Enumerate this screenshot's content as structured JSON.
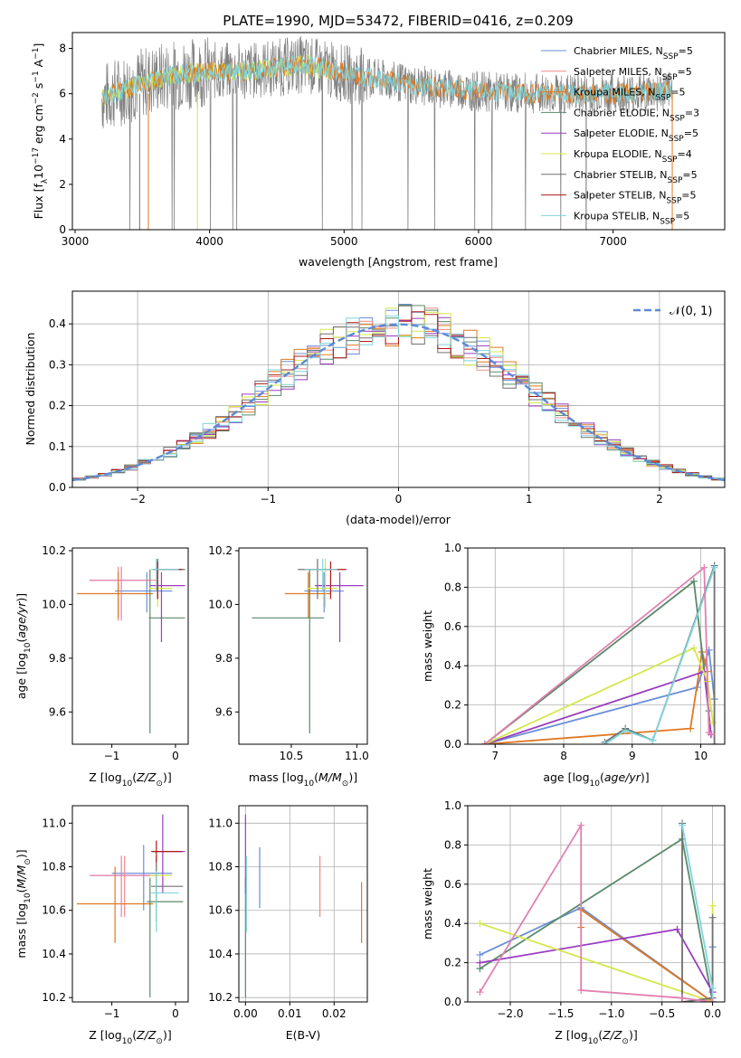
{
  "title": "PLATE=1990, MJD=53472, FIBERID=0416, z=0.209",
  "colors": {
    "Chabrier MILES": "#6a8fd8",
    "Salpeter MILES": "#f08a8a",
    "Kroupa MILES": "#e07820",
    "Chabrier ELODIE": "#5a8a6a",
    "Salpeter ELODIE": "#9a3cc0",
    "Kroupa ELODIE": "#d4e84a",
    "Chabrier STELIB": "#707070",
    "Salpeter STELIB": "#b01818",
    "Kroupa STELIB": "#7ed4dc",
    "pink": "#e080b0",
    "gauss": "#5b8ad6"
  },
  "chart_data": [
    {
      "id": "spectrum",
      "type": "line",
      "title": "PLATE=1990, MJD=53472, FIBERID=0416, z=0.209",
      "xlabel": "wavelength [Angstrom, rest frame]",
      "ylabel_main": "Flux [f",
      "ylabel_tail": "10",
      "ylabel_units": "erg cm",
      "xlim": [
        2980,
        7830
      ],
      "ylim": [
        0,
        8.7
      ],
      "xticks": [
        "3000",
        "4000",
        "5000",
        "6000",
        "7000"
      ],
      "yticks": [
        "0",
        "2",
        "4",
        "6",
        "8"
      ],
      "legend_loc": "upper right",
      "legend": [
        {
          "model": "Chabrier MILES, N",
          "n": "=5"
        },
        {
          "model": "Salpeter MILES, N",
          "n": "=5"
        },
        {
          "model": "Kroupa MILES, N",
          "n": "=5"
        },
        {
          "model": "Chabrier ELODIE, N",
          "n": "=3"
        },
        {
          "model": "Salpeter ELODIE, N",
          "n": "=5"
        },
        {
          "model": "Kroupa ELODIE, N",
          "n": "=4"
        },
        {
          "model": "Chabrier STELIB, N",
          "n": "=5"
        },
        {
          "model": "Salpeter STELIB, N",
          "n": "=5"
        },
        {
          "model": "Kroupa STELIB, N",
          "n": "=5"
        }
      ],
      "ssp_sub": "SSP",
      "wavelength_range": [
        3200,
        7440
      ],
      "continuum": [
        [
          3200,
          5.8
        ],
        [
          3500,
          6.5
        ],
        [
          3700,
          6.8
        ],
        [
          4000,
          7.0
        ],
        [
          4300,
          7.0
        ],
        [
          4700,
          7.3
        ],
        [
          5000,
          6.9
        ],
        [
          5500,
          6.4
        ],
        [
          6000,
          6.1
        ],
        [
          6500,
          6.0
        ],
        [
          7000,
          6.0
        ],
        [
          7440,
          6.1
        ]
      ]
    },
    {
      "id": "residuals",
      "type": "histogram",
      "xlabel": "(data-model)/error",
      "ylabel": "Normed distribution",
      "xlim": [
        -2.5,
        2.5
      ],
      "ylim": [
        0,
        0.48
      ],
      "xticks": [
        "−2",
        "−1",
        "0",
        "1",
        "2"
      ],
      "yticks": [
        "0.0",
        "0.1",
        "0.2",
        "0.3",
        "0.4"
      ],
      "grid": true,
      "legend_loc": "upper right",
      "gauss_label": "𝒩(0, 1)",
      "bin_width": 0.1
    },
    {
      "id": "age-vs-Z",
      "type": "scatter",
      "xlabel": "Z [log",
      "ylabel": "age  [log",
      "xlim": [
        -1.62,
        0.2
      ],
      "ylim": [
        9.48,
        10.21
      ],
      "xticks": [
        "−1",
        "0"
      ],
      "yticks": [
        "9.6",
        "9.8",
        "10.0",
        "10.2"
      ],
      "points": [
        {
          "c": "Chabrier MILES",
          "x": -0.45,
          "y": 10.05,
          "xe": [
            -0.95,
            -0.05
          ],
          "ye": [
            9.97,
            10.12
          ]
        },
        {
          "c": "Salpeter MILES",
          "x": -0.9,
          "y": 10.09,
          "xe": [
            -1.35,
            -0.3
          ],
          "ye": [
            9.94,
            10.14
          ]
        },
        {
          "c": "Kroupa MILES",
          "x": -0.9,
          "y": 10.04,
          "xe": [
            -1.55,
            -0.35
          ],
          "ye": [
            9.95,
            10.12
          ]
        },
        {
          "c": "Chabrier ELODIE",
          "x": -0.4,
          "y": 9.95,
          "xe": [
            -0.42,
            0.15
          ],
          "ye": [
            9.52,
            10.13
          ]
        },
        {
          "c": "Salpeter ELODIE",
          "x": -0.22,
          "y": 10.07,
          "xe": [
            -0.4,
            0.15
          ],
          "ye": [
            9.86,
            10.12
          ]
        },
        {
          "c": "Kroupa ELODIE",
          "x": -0.28,
          "y": 10.06,
          "xe": [
            -0.42,
            -0.05
          ],
          "ye": [
            9.99,
            10.17
          ]
        },
        {
          "c": "Chabrier STELIB",
          "x": -0.28,
          "y": 10.13,
          "xe": [
            -0.35,
            0.15
          ],
          "ye": [
            10.02,
            10.17
          ]
        },
        {
          "c": "Salpeter STELIB",
          "x": -0.28,
          "y": 10.13,
          "xe": [
            -0.35,
            0.1
          ],
          "ye": [
            10.02,
            10.16
          ]
        },
        {
          "c": "Kroupa STELIB",
          "x": -0.3,
          "y": 10.13,
          "xe": [
            -0.38,
            0.05
          ],
          "ye": [
            10.05,
            10.17
          ]
        },
        {
          "c": "pink",
          "x": -0.85,
          "y": 10.09,
          "xe": [
            -1.35,
            -0.4
          ],
          "ye": [
            9.94,
            10.14
          ]
        }
      ]
    },
    {
      "id": "age-vs-mass",
      "type": "scatter",
      "xlabel": "mass [log",
      "xlim": [
        10.1,
        11.08
      ],
      "ylim": [
        9.48,
        10.21
      ],
      "xticks": [
        "10.5",
        "11.0"
      ],
      "yticks": [
        "9.6",
        "9.8",
        "10.0",
        "10.2"
      ],
      "points": [
        {
          "c": "Chabrier MILES",
          "x": 10.75,
          "y": 10.05,
          "xe": [
            10.6,
            10.9
          ],
          "ye": [
            9.97,
            10.12
          ]
        },
        {
          "c": "Kroupa MILES",
          "x": 10.63,
          "y": 10.04,
          "xe": [
            10.45,
            10.8
          ],
          "ye": [
            9.95,
            10.12
          ]
        },
        {
          "c": "Chabrier ELODIE",
          "x": 10.64,
          "y": 9.95,
          "xe": [
            10.2,
            10.75
          ],
          "ye": [
            9.52,
            10.13
          ]
        },
        {
          "c": "Salpeter ELODIE",
          "x": 10.87,
          "y": 10.07,
          "xe": [
            10.68,
            11.05
          ],
          "ye": [
            9.86,
            10.12
          ]
        },
        {
          "c": "Kroupa ELODIE",
          "x": 10.76,
          "y": 10.06,
          "xe": [
            10.62,
            10.85
          ],
          "ye": [
            9.99,
            10.17
          ]
        },
        {
          "c": "Chabrier STELIB",
          "x": 10.7,
          "y": 10.13,
          "xe": [
            10.55,
            10.85
          ],
          "ye": [
            10.02,
            10.17
          ]
        },
        {
          "c": "Salpeter STELIB",
          "x": 10.8,
          "y": 10.13,
          "xe": [
            10.6,
            10.92
          ],
          "ye": [
            10.02,
            10.16
          ]
        },
        {
          "c": "Kroupa STELIB",
          "x": 10.74,
          "y": 10.13,
          "xe": [
            10.6,
            10.85
          ],
          "ye": [
            10.05,
            10.17
          ]
        }
      ]
    },
    {
      "id": "weight-vs-age",
      "type": "line",
      "xlabel": "age  [log",
      "ylabel": "mass weight",
      "xlim": [
        6.6,
        10.35
      ],
      "ylim": [
        0,
        1.0
      ],
      "xticks": [
        "7",
        "8",
        "9",
        "10"
      ],
      "yticks": [
        "0.0",
        "0.2",
        "0.4",
        "0.6",
        "0.8",
        "1.0"
      ],
      "grid": true,
      "series": [
        {
          "c": "Chabrier MILES",
          "x": [
            6.85,
            9.95,
            10.12,
            10.2
          ],
          "y": [
            0.0,
            0.29,
            0.48,
            0.23
          ]
        },
        {
          "c": "Kroupa MILES",
          "x": [
            6.85,
            9.85,
            10.02,
            10.1
          ],
          "y": [
            0.0,
            0.08,
            0.47,
            0.37
          ]
        },
        {
          "c": "Chabrier ELODIE",
          "x": [
            6.85,
            9.9,
            10.12
          ],
          "y": [
            0.0,
            0.83,
            0.17
          ]
        },
        {
          "c": "Salpeter ELODIE",
          "x": [
            6.85,
            10.05,
            10.15
          ],
          "y": [
            0.0,
            0.37,
            0.05
          ]
        },
        {
          "c": "Kroupa ELODIE",
          "x": [
            6.85,
            9.9,
            10.1,
            10.18
          ],
          "y": [
            0.0,
            0.49,
            0.32,
            0.11
          ]
        },
        {
          "c": "Chabrier STELIB",
          "x": [
            8.6,
            8.9,
            9.3,
            10.2,
            10.2
          ],
          "y": [
            0.01,
            0.08,
            0.02,
            0.91,
            0.0
          ]
        },
        {
          "c": "Kroupa STELIB",
          "x": [
            8.6,
            8.9,
            9.3,
            10.2
          ],
          "y": [
            0.0,
            0.07,
            0.02,
            0.9
          ]
        },
        {
          "c": "pink",
          "x": [
            6.85,
            10.05,
            10.12,
            10.16
          ],
          "y": [
            0.0,
            0.9,
            0.06,
            0.05
          ]
        }
      ]
    },
    {
      "id": "mass-vs-Z",
      "type": "scatter",
      "xlabel": "Z [log",
      "ylabel": "mass [log",
      "xlim": [
        -1.62,
        0.2
      ],
      "ylim": [
        10.18,
        11.08
      ],
      "xticks": [
        "−1",
        "0"
      ],
      "yticks": [
        "10.2",
        "10.4",
        "10.6",
        "10.8",
        "11.0"
      ],
      "points": [
        {
          "c": "Chabrier MILES",
          "x": -0.5,
          "y": 10.77,
          "xe": [
            -1.0,
            -0.05
          ],
          "ye": [
            10.6,
            10.9
          ]
        },
        {
          "c": "Salpeter MILES",
          "x": -0.8,
          "y": 10.76,
          "xe": [
            -1.3,
            -0.3
          ],
          "ye": [
            10.57,
            10.85
          ]
        },
        {
          "c": "Kroupa MILES",
          "x": -0.95,
          "y": 10.63,
          "xe": [
            -1.55,
            -0.35
          ],
          "ye": [
            10.45,
            10.8
          ]
        },
        {
          "c": "Chabrier ELODIE",
          "x": -0.4,
          "y": 10.64,
          "xe": [
            -0.45,
            0.12
          ],
          "ye": [
            10.2,
            10.75
          ]
        },
        {
          "c": "Salpeter ELODIE",
          "x": -0.2,
          "y": 10.87,
          "xe": [
            -0.35,
            0.15
          ],
          "ye": [
            10.68,
            11.04
          ]
        },
        {
          "c": "Kroupa ELODIE",
          "x": -0.3,
          "y": 10.76,
          "xe": [
            -0.45,
            -0.05
          ],
          "ye": [
            10.62,
            10.85
          ]
        },
        {
          "c": "Chabrier STELIB",
          "x": -0.3,
          "y": 10.71,
          "xe": [
            -0.38,
            0.12
          ],
          "ye": [
            10.55,
            10.85
          ]
        },
        {
          "c": "Salpeter STELIB",
          "x": -0.3,
          "y": 10.87,
          "xe": [
            -0.38,
            0.1
          ],
          "ye": [
            10.82,
            10.92
          ]
        },
        {
          "c": "Kroupa STELIB",
          "x": -0.3,
          "y": 10.68,
          "xe": [
            -0.38,
            0.05
          ],
          "ye": [
            10.5,
            10.78
          ]
        },
        {
          "c": "pink",
          "x": -0.85,
          "y": 10.76,
          "xe": [
            -1.35,
            -0.4
          ],
          "ye": [
            10.57,
            10.85
          ]
        }
      ]
    },
    {
      "id": "mass-vs-ebv",
      "type": "scatter",
      "xlabel": "E(B-V)",
      "xlim": [
        -0.0015,
        0.0275
      ],
      "ylim": [
        10.18,
        11.08
      ],
      "xticks": [
        "0.00",
        "0.01",
        "0.02"
      ],
      "yticks": [
        "10.2",
        "10.4",
        "10.6",
        "10.8",
        "11.0"
      ],
      "grid": true,
      "points": [
        {
          "c": "Chabrier MILES",
          "x": 0.0032,
          "ye": [
            10.61,
            10.89
          ]
        },
        {
          "c": "Salpeter MILES",
          "x": 0.0168,
          "ye": [
            10.57,
            10.85
          ]
        },
        {
          "c": "Kroupa MILES",
          "x": 0.0262,
          "ye": [
            10.45,
            10.73
          ]
        },
        {
          "c": "Chabrier ELODIE",
          "x": 0.0,
          "ye": [
            10.2,
            10.75
          ]
        },
        {
          "c": "Salpeter ELODIE",
          "x": 0.0,
          "ye": [
            10.68,
            11.04
          ]
        },
        {
          "c": "Kroupa STELIB",
          "x": 0.0002,
          "ye": [
            10.5,
            10.85
          ]
        }
      ]
    },
    {
      "id": "weight-vs-Z",
      "type": "line",
      "xlabel": "Z [log",
      "ylabel": "mass weight",
      "xlim": [
        -2.42,
        0.12
      ],
      "ylim": [
        0,
        1.0
      ],
      "xticks": [
        "−2.0",
        "−1.5",
        "−1.0",
        "−0.5",
        "0.0"
      ],
      "yticks": [
        "0.0",
        "0.2",
        "0.4",
        "0.6",
        "0.8",
        "1.0"
      ],
      "grid": true,
      "series": [
        {
          "c": "Chabrier MILES",
          "x": [
            -2.3,
            -1.3,
            0.0,
            0.0
          ],
          "y": [
            0.24,
            0.48,
            0.0,
            0.28
          ]
        },
        {
          "c": "Kroupa MILES",
          "x": [
            -1.3,
            -1.3,
            0.0
          ],
          "y": [
            0.38,
            0.47,
            0.0
          ]
        },
        {
          "c": "Chabrier ELODIE",
          "x": [
            -2.3,
            -0.3,
            0.0
          ],
          "y": [
            0.17,
            0.83,
            0.0
          ]
        },
        {
          "c": "Salpeter ELODIE",
          "x": [
            -2.3,
            -0.35,
            0.0
          ],
          "y": [
            0.2,
            0.37,
            0.05
          ]
        },
        {
          "c": "Kroupa ELODIE",
          "x": [
            -2.3,
            0.0,
            0.0
          ],
          "y": [
            0.4,
            0.0,
            0.49
          ]
        },
        {
          "c": "Chabrier STELIB",
          "x": [
            -0.3,
            -0.3,
            0.0,
            0.0
          ],
          "y": [
            0.91,
            0.0,
            0.02,
            0.43
          ]
        },
        {
          "c": "Kroupa STELIB",
          "x": [
            -0.3,
            0.0,
            0.0
          ],
          "y": [
            0.9,
            0.07,
            0.0
          ]
        },
        {
          "c": "pink",
          "x": [
            -2.3,
            -1.3,
            -1.3,
            -0.3,
            0.0
          ],
          "y": [
            0.05,
            0.9,
            0.06,
            0.02,
            0.0
          ]
        }
      ]
    }
  ]
}
